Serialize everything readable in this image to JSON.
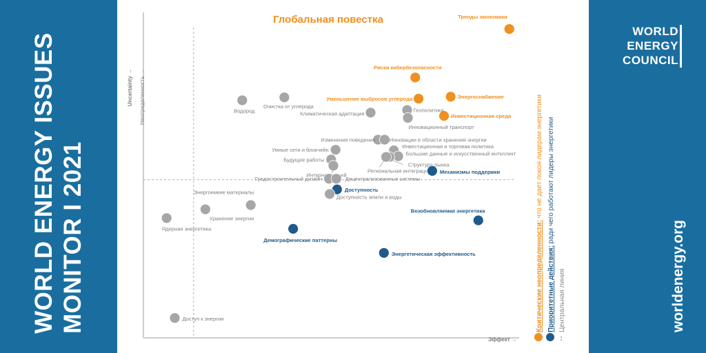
{
  "left_panel": {
    "title_line1": "WORLD ENERGY ISSUES",
    "title_line2": "MONITOR  I  2021"
  },
  "right_panel": {
    "logo_lines": [
      "WORLD",
      "ENERGY",
      "COUNCIL"
    ],
    "website": "worldenergy.org"
  },
  "legend": {
    "critical_label": "Критические неопределенности:",
    "critical_desc": " что не дает покоя лидерам энергетики",
    "priority_label": "Приоритетные действия:",
    "priority_desc": " ради чего работают лидеры энергетики",
    "centerline_label": "Центральная линия"
  },
  "colors": {
    "critical": "#f0901e",
    "priority": "#1f5a8c",
    "neutral": "#a6a6a6",
    "panel": "#1a6e9f"
  },
  "chart_data": {
    "type": "scatter",
    "title": "Глобальная повестка",
    "xlabel": "Эффект →",
    "ylabel_en": "Uncertainty →",
    "ylabel_ru": "Неопределенность →",
    "xlim": [
      0,
      100
    ],
    "ylim": [
      0,
      100
    ],
    "centerline": {
      "x": 13.6,
      "y": 48.6
    },
    "points": [
      {
        "label": "Тренды экономики",
        "x": 99.2,
        "y": 94.9,
        "category": "critical"
      },
      {
        "label": "Риски кибербезопасности",
        "x": 73.7,
        "y": 80.0,
        "category": "critical"
      },
      {
        "label": "Энергоснабжение",
        "x": 83.3,
        "y": 74.1,
        "category": "critical"
      },
      {
        "label": "Уменьшение выбросов углерода",
        "x": 74.6,
        "y": 73.5,
        "category": "critical"
      },
      {
        "label": "Инвестиционная среда",
        "x": 81.5,
        "y": 68.2,
        "category": "critical"
      },
      {
        "label": "Водород",
        "x": 26.8,
        "y": 73.0,
        "category": "neutral"
      },
      {
        "label": "Очистка от углерода",
        "x": 38.2,
        "y": 73.9,
        "category": "neutral"
      },
      {
        "label": "Климатическая адаптация",
        "x": 61.6,
        "y": 69.2,
        "category": "neutral"
      },
      {
        "label": "Геополитика",
        "x": 71.5,
        "y": 70.0,
        "category": "neutral"
      },
      {
        "label": "Инновационный транспорт",
        "x": 71.7,
        "y": 67.6,
        "category": "neutral"
      },
      {
        "label": "Изменения поведения",
        "x": 63.6,
        "y": 60.9,
        "category": "neutral"
      },
      {
        "label": "Инновации в области хранения энергии",
        "x": 65.4,
        "y": 60.9,
        "category": "neutral"
      },
      {
        "label": "Умные сети и блокчейн",
        "x": 52.1,
        "y": 57.8,
        "category": "neutral"
      },
      {
        "label": "Инвестиционная и торговая политика",
        "x": 67.9,
        "y": 57.6,
        "category": "neutral"
      },
      {
        "label": "Будущее работы",
        "x": 50.9,
        "y": 54.8,
        "category": "neutral"
      },
      {
        "label": "Большие данные и искусственный интеллект",
        "x": 69.1,
        "y": 55.8,
        "category": "neutral"
      },
      {
        "label": "Структура рынка",
        "x": 66.7,
        "y": 55.6,
        "category": "neutral"
      },
      {
        "label": "Региональная интеграция",
        "x": 65.8,
        "y": 55.6,
        "category": "neutral"
      },
      {
        "label": "Интернет вещей",
        "x": 51.5,
        "y": 52.9,
        "category": "neutral"
      },
      {
        "label": "Механизмы поддержки",
        "x": 78.3,
        "y": 51.3,
        "category": "priority"
      },
      {
        "label": "Градостроительный дизайн",
        "x": 50.3,
        "y": 48.9,
        "category": "neutral"
      },
      {
        "label": "Децентрализованные системы",
        "x": 52.3,
        "y": 48.9,
        "category": "neutral"
      },
      {
        "label": "Доступность",
        "x": 52.5,
        "y": 45.6,
        "category": "priority"
      },
      {
        "label": "Доступность земли и воды",
        "x": 50.5,
        "y": 44.2,
        "category": "neutral"
      },
      {
        "label": "Энергоемкие материалы",
        "x": 29.1,
        "y": 40.8,
        "category": "neutral"
      },
      {
        "label": "Хранение энергии",
        "x": 16.8,
        "y": 39.5,
        "category": "neutral"
      },
      {
        "label": "Ядерная энергетика",
        "x": 6.3,
        "y": 36.8,
        "category": "neutral"
      },
      {
        "label": "Возобновляемая энергетика",
        "x": 90.8,
        "y": 36.1,
        "category": "priority"
      },
      {
        "label": "Демографические паттерны",
        "x": 40.6,
        "y": 33.5,
        "category": "priority"
      },
      {
        "label": "Энергетическая эффективность",
        "x": 65.2,
        "y": 26.1,
        "category": "priority"
      },
      {
        "label": "Доступ к энергии",
        "x": 8.5,
        "y": 6.1,
        "category": "neutral"
      }
    ]
  }
}
